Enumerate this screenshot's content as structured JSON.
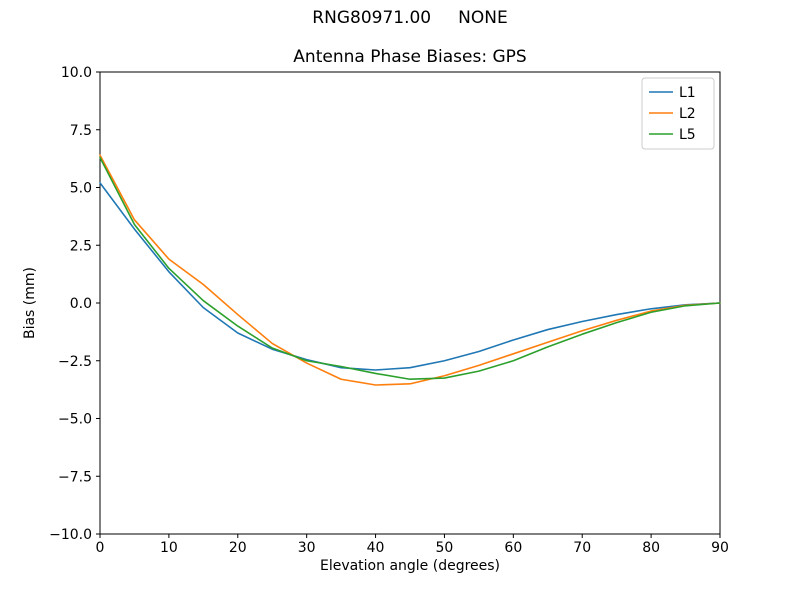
{
  "figure": {
    "suptitle": "RNG80971.00     NONE",
    "background": "#ffffff"
  },
  "chart_data": {
    "type": "line",
    "title": "Antenna Phase Biases: GPS",
    "xlabel": "Elevation angle (degrees)",
    "ylabel": "Bias (mm)",
    "xlim": [
      0,
      90
    ],
    "ylim": [
      -10,
      10
    ],
    "grid": false,
    "legend_position": "upper right",
    "xticks": [
      0,
      10,
      20,
      30,
      40,
      50,
      60,
      70,
      80,
      90
    ],
    "xticklabels": [
      "0",
      "10",
      "20",
      "30",
      "40",
      "50",
      "60",
      "70",
      "80",
      "90"
    ],
    "yticks": [
      10,
      7.5,
      5,
      2.5,
      0,
      -2.5,
      -5,
      -7.5,
      -10
    ],
    "yticklabels": [
      "10.0",
      "7.5",
      "5.0",
      "2.5",
      "0.0",
      "−2.5",
      "−5.0",
      "−7.5",
      "−10.0"
    ],
    "x": [
      0,
      5,
      10,
      15,
      20,
      25,
      30,
      35,
      40,
      45,
      50,
      55,
      60,
      65,
      70,
      75,
      80,
      85,
      90
    ],
    "series": [
      {
        "name": "L1",
        "color": "#1f77b4",
        "values": [
          5.2,
          3.2,
          1.35,
          -0.2,
          -1.3,
          -2.0,
          -2.45,
          -2.8,
          -2.9,
          -2.8,
          -2.5,
          -2.1,
          -1.6,
          -1.15,
          -0.8,
          -0.5,
          -0.25,
          -0.08,
          0.0
        ]
      },
      {
        "name": "L2",
        "color": "#ff7f0e",
        "values": [
          6.4,
          3.6,
          1.9,
          0.8,
          -0.5,
          -1.75,
          -2.6,
          -3.3,
          -3.55,
          -3.5,
          -3.15,
          -2.7,
          -2.2,
          -1.7,
          -1.2,
          -0.75,
          -0.35,
          -0.1,
          0.0
        ]
      },
      {
        "name": "L5",
        "color": "#2ca02c",
        "values": [
          6.3,
          3.4,
          1.5,
          0.1,
          -1.0,
          -1.95,
          -2.5,
          -2.75,
          -3.05,
          -3.3,
          -3.25,
          -2.95,
          -2.5,
          -1.9,
          -1.35,
          -0.85,
          -0.4,
          -0.12,
          0.0
        ]
      }
    ]
  }
}
